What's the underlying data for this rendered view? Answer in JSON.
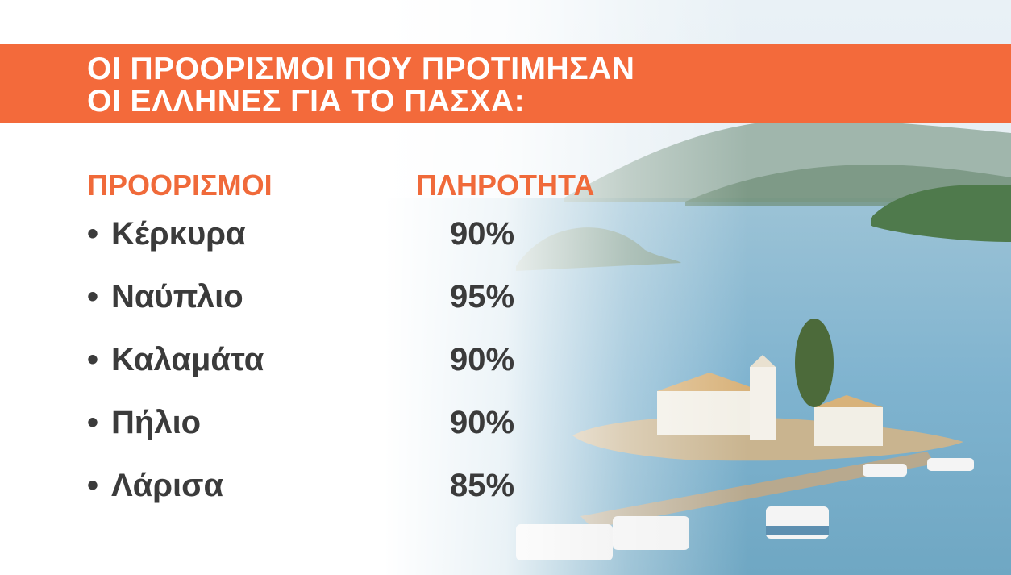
{
  "title": {
    "line1": "ΟΙ ΠΡΟΟΡΙΣΜΟΙ ΠΟΥ ΠΡΟΤΙΜΗΣΑΝ",
    "line2": "ΟΙ ΕΛΛΗΝΕΣ ΓΙΑ ΤΟ ΠΑΣΧΑ:"
  },
  "table": {
    "header_destinations": "ΠΡΟΟΡΙΣΜΟΙ",
    "header_occupancy": "ΠΛΗΡΟΤΗΤΑ",
    "bullet": "•",
    "rows": [
      {
        "name": "Κέρκυρα",
        "value": "90%"
      },
      {
        "name": "Ναύπλιο",
        "value": "95%"
      },
      {
        "name": "Καλαμάτα",
        "value": "90%"
      },
      {
        "name": "Πήλιο",
        "value": "90%"
      },
      {
        "name": "Λάρισα",
        "value": "85%"
      }
    ]
  },
  "colors": {
    "accent": "#f36a3b",
    "header_text": "#f06a3a",
    "body_text": "#3b3b3b",
    "sea": "#7fb3cf"
  }
}
